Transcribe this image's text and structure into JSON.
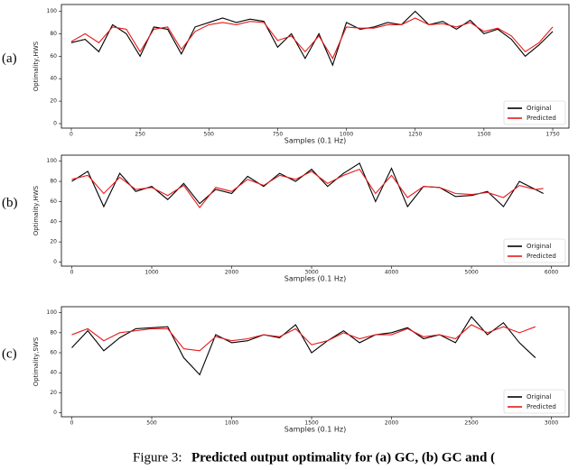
{
  "chart_data": [
    {
      "type": "line",
      "panel_label": "(a)",
      "xlabel": "Samples (0.1 Hz)",
      "ylabel": "Optimality,HWS",
      "xlim": [
        -36,
        1809
      ],
      "ylim": [
        -4,
        106
      ],
      "xticks": [
        0,
        250,
        500,
        750,
        1000,
        1250,
        1500,
        1750
      ],
      "yticks": [
        0,
        20,
        40,
        60,
        80,
        100
      ],
      "legend": "lower right",
      "x": [
        0,
        50,
        100,
        150,
        200,
        250,
        300,
        350,
        400,
        450,
        500,
        550,
        600,
        650,
        700,
        750,
        800,
        850,
        900,
        950,
        1000,
        1050,
        1100,
        1150,
        1200,
        1250,
        1300,
        1350,
        1400,
        1450,
        1500,
        1550,
        1600,
        1650,
        1700,
        1750
      ],
      "series": [
        {
          "name": "Original",
          "color": "#000000",
          "values": [
            72,
            75,
            64,
            88,
            80,
            60,
            86,
            84,
            62,
            86,
            90,
            94,
            90,
            93,
            91,
            68,
            80,
            58,
            80,
            52,
            90,
            84,
            86,
            90,
            88,
            100,
            88,
            91,
            84,
            92,
            80,
            84,
            75,
            60,
            70,
            82
          ]
        },
        {
          "name": "Predicted",
          "color": "#e8191a",
          "values": [
            73,
            80,
            72,
            86,
            84,
            64,
            84,
            86,
            66,
            82,
            88,
            90,
            88,
            91,
            90,
            74,
            78,
            64,
            78,
            58,
            86,
            85,
            85,
            88,
            88,
            94,
            88,
            89,
            86,
            90,
            82,
            85,
            78,
            64,
            72,
            86
          ]
        }
      ]
    },
    {
      "type": "line",
      "panel_label": "(b)",
      "xlabel": "Samples (0.1 Hz)",
      "ylabel": "Optimality,HWS",
      "xlim": [
        -130,
        6220
      ],
      "ylim": [
        -4,
        106
      ],
      "xticks": [
        0,
        1000,
        2000,
        3000,
        4000,
        5000,
        6000
      ],
      "yticks": [
        0,
        20,
        40,
        60,
        80,
        100
      ],
      "legend": "lower right",
      "x": [
        0,
        200,
        400,
        600,
        800,
        1000,
        1200,
        1400,
        1600,
        1800,
        2000,
        2200,
        2400,
        2600,
        2800,
        3000,
        3200,
        3400,
        3600,
        3800,
        4000,
        4200,
        4400,
        4600,
        4800,
        5000,
        5200,
        5400,
        5600,
        5800,
        5900
      ],
      "series": [
        {
          "name": "Original",
          "color": "#000000",
          "values": [
            80,
            90,
            55,
            88,
            70,
            75,
            62,
            78,
            58,
            72,
            68,
            85,
            75,
            88,
            80,
            92,
            75,
            88,
            98,
            60,
            93,
            55,
            75,
            74,
            65,
            66,
            70,
            55,
            80,
            72,
            68
          ]
        },
        {
          "name": "Predicted",
          "color": "#e8191a",
          "values": [
            82,
            86,
            68,
            84,
            72,
            74,
            66,
            76,
            54,
            74,
            70,
            82,
            76,
            86,
            82,
            90,
            78,
            86,
            92,
            68,
            86,
            64,
            75,
            74,
            68,
            67,
            69,
            64,
            76,
            72,
            73
          ]
        }
      ]
    },
    {
      "type": "line",
      "panel_label": "(c)",
      "xlabel": "Samples (0.1 Hz)",
      "ylabel": "Optimality,SWS",
      "xlim": [
        -65,
        3110
      ],
      "ylim": [
        -4,
        106
      ],
      "xticks": [
        0,
        500,
        1000,
        1500,
        2000,
        2500,
        3000
      ],
      "yticks": [
        0,
        20,
        40,
        60,
        80,
        100
      ],
      "legend": "lower right",
      "x": [
        0,
        100,
        200,
        300,
        400,
        500,
        600,
        700,
        800,
        900,
        1000,
        1100,
        1200,
        1300,
        1400,
        1500,
        1600,
        1700,
        1800,
        1900,
        2000,
        2100,
        2200,
        2300,
        2400,
        2500,
        2600,
        2700,
        2800,
        2900
      ],
      "series": [
        {
          "name": "Original",
          "color": "#000000",
          "values": [
            65,
            82,
            62,
            75,
            84,
            85,
            86,
            55,
            38,
            78,
            70,
            72,
            78,
            75,
            88,
            60,
            72,
            82,
            70,
            78,
            80,
            85,
            74,
            78,
            70,
            96,
            78,
            90,
            70,
            55
          ]
        },
        {
          "name": "Predicted",
          "color": "#e8191a",
          "values": [
            78,
            84,
            72,
            80,
            82,
            84,
            84,
            64,
            62,
            76,
            72,
            74,
            78,
            76,
            84,
            68,
            72,
            80,
            74,
            78,
            78,
            84,
            76,
            78,
            74,
            88,
            80,
            86,
            80,
            86
          ]
        }
      ]
    }
  ],
  "caption": {
    "label": "Figure 3:",
    "text": "Predicted output optimality for (a) GC, (b) GC and ("
  }
}
